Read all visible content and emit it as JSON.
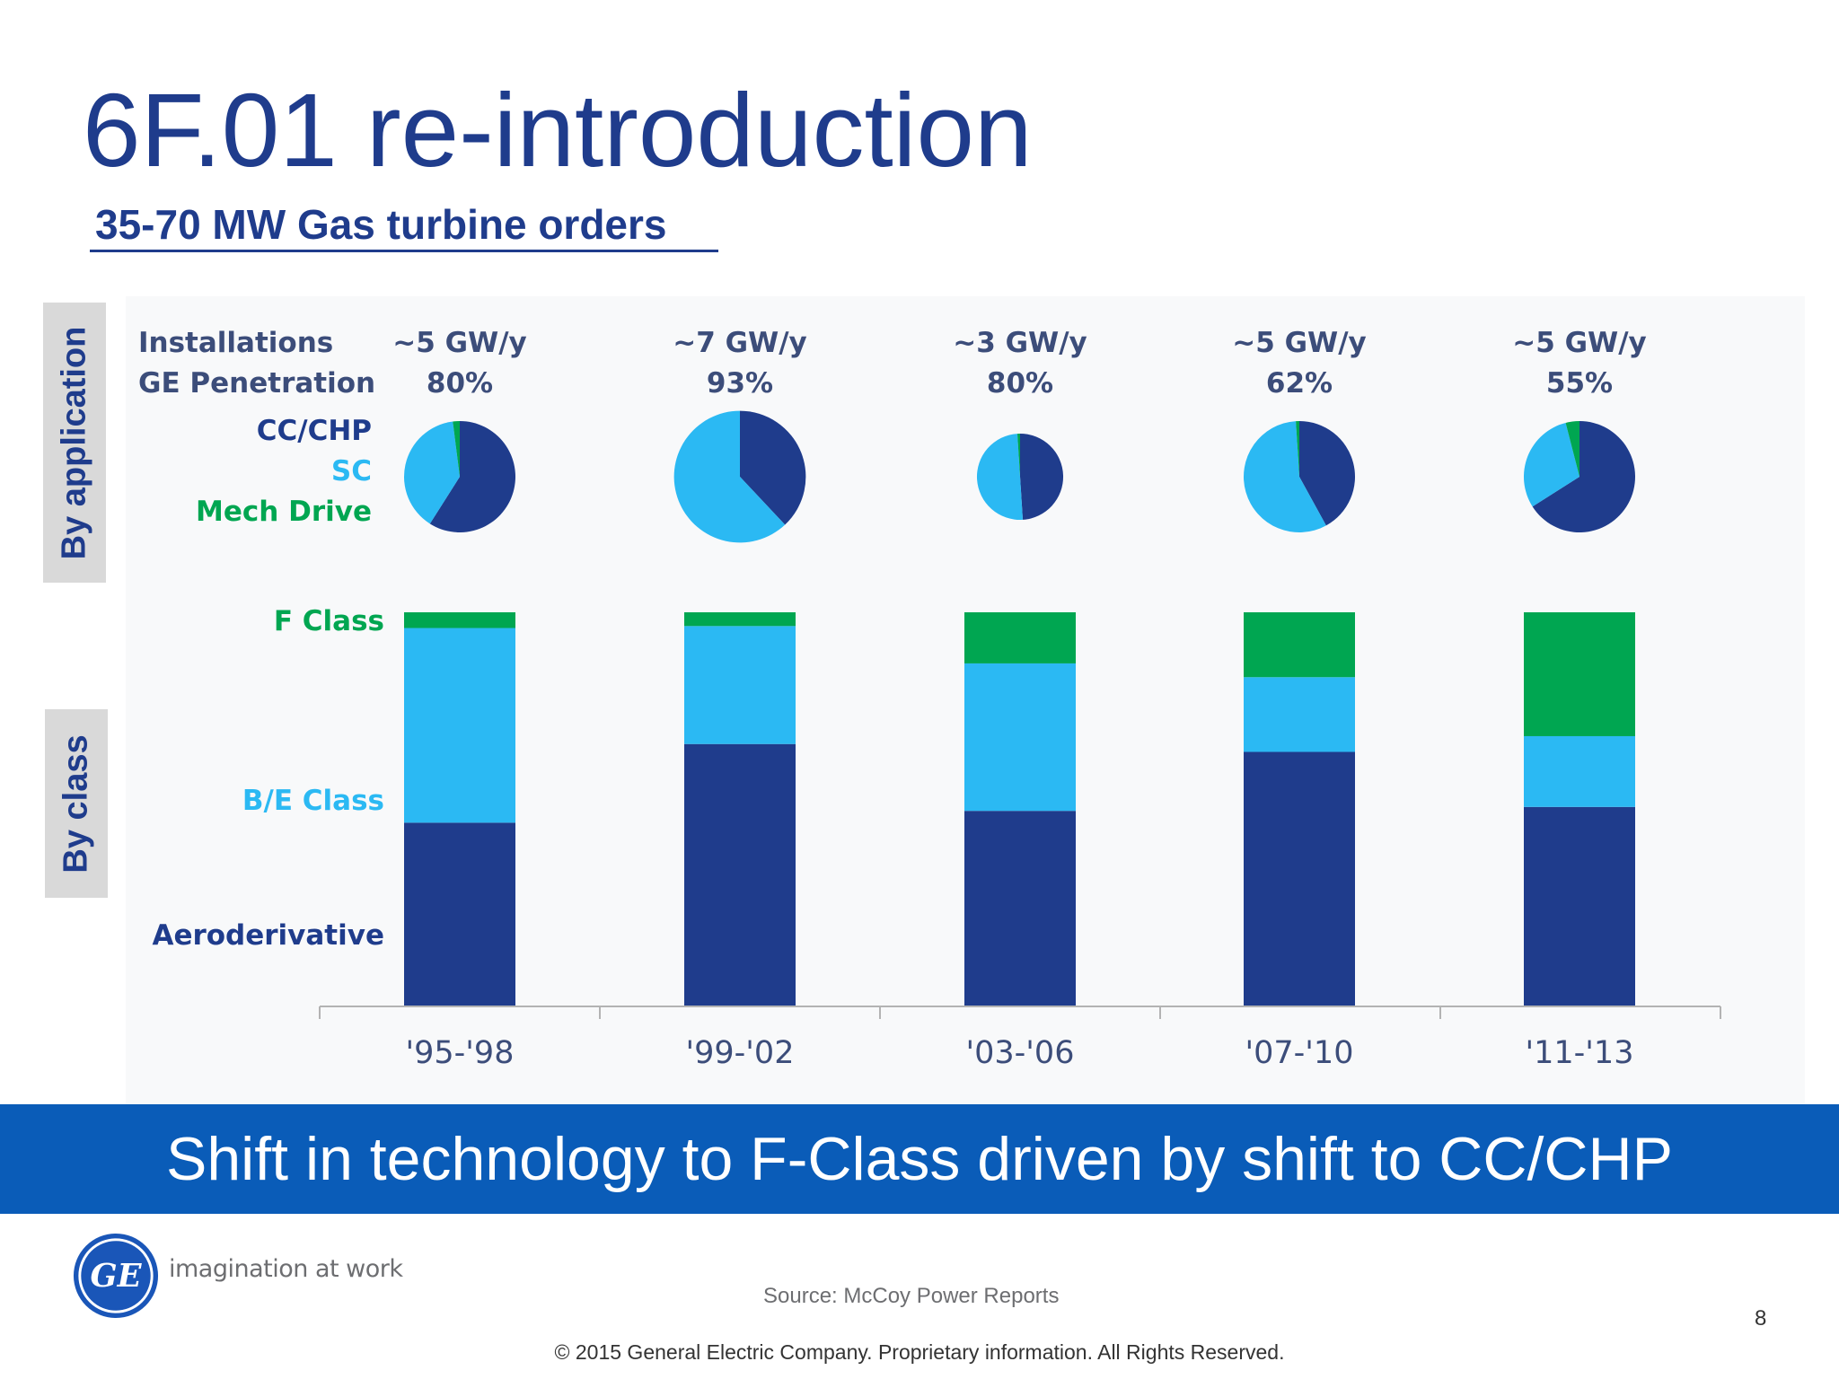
{
  "slide": {
    "title": "6F.01 re-introduction",
    "subtitle": "35-70 MW Gas turbine orders",
    "side_label_application": "By application",
    "side_label_class": "By class",
    "banner": "Shift in technology to F-Class driven by shift to CC/CHP",
    "tagline": "imagination at work",
    "source": "Source: McCoy Power Reports",
    "page_number": "8",
    "copyright": "© 2015 General Electric Company. Proprietary information. All Rights Reserved.",
    "logo_letters": "GE"
  },
  "colors": {
    "navy": "#1f3c8c",
    "light_blue": "#2bb9f3",
    "green": "#00a651",
    "banner": "#0a5cb8"
  },
  "chart_data": [
    {
      "type": "pie",
      "row_labels": [
        "Installations",
        "GE Penetration"
      ],
      "legend": [
        "CC/CHP",
        "SC",
        "Mech Drive"
      ],
      "periods": [
        {
          "installations": "~5 GW/y",
          "ge_penetration": "80%",
          "slices": {
            "CC/CHP": 59,
            "SC": 39,
            "Mech Drive": 2
          }
        },
        {
          "installations": "~7 GW/y",
          "ge_penetration": "93%",
          "slices": {
            "CC/CHP": 38,
            "SC": 62,
            "Mech Drive": 0
          }
        },
        {
          "installations": "~3 GW/y",
          "ge_penetration": "80%",
          "slices": {
            "CC/CHP": 49,
            "SC": 50,
            "Mech Drive": 1
          }
        },
        {
          "installations": "~5 GW/y",
          "ge_penetration": "62%",
          "slices": {
            "CC/CHP": 42,
            "SC": 57,
            "Mech Drive": 1
          }
        },
        {
          "installations": "~5 GW/y",
          "ge_penetration": "55%",
          "slices": {
            "CC/CHP": 66,
            "SC": 30,
            "Mech Drive": 4
          }
        }
      ],
      "note": "Pie size reflects installations (GW/y)"
    },
    {
      "type": "bar",
      "stacked": true,
      "normalized": true,
      "categories": [
        "'95-'98",
        "'99-'02",
        "'03-'06",
        "'07-'10",
        "'11-'13"
      ],
      "series": [
        {
          "name": "Aeroderivative",
          "values": [
            46.5,
            66.5,
            49.5,
            64.5,
            50.5
          ]
        },
        {
          "name": "B/E Class",
          "values": [
            49.5,
            30,
            37.5,
            19,
            18
          ]
        },
        {
          "name": "F Class",
          "values": [
            4,
            3.5,
            13,
            16.5,
            31.5
          ]
        }
      ],
      "ylim": [
        0,
        100
      ],
      "grid": false
    }
  ]
}
